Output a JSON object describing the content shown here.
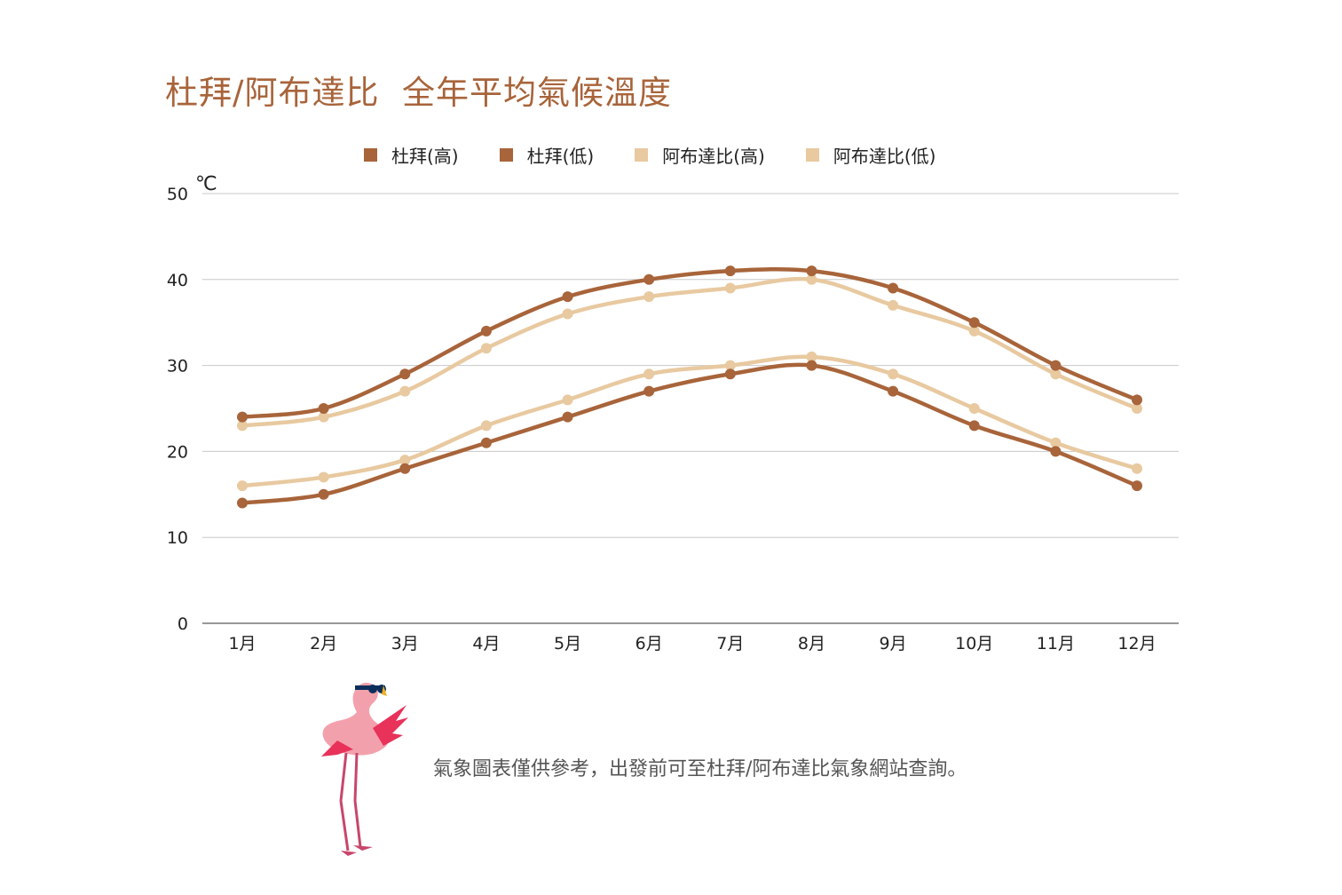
{
  "title": "杜拜/阿布達比  全年平均氣候溫度",
  "note": "氣象圖表僅供參考，出發前可至杜拜/阿布達比氣象網站查詢。",
  "colors": {
    "dubai": "#a8643a",
    "abudhabi": "#e8c9a0",
    "title": "#a8643a"
  },
  "chart_data": {
    "type": "line",
    "title": "杜拜/阿布達比  全年平均氣候溫度",
    "ylabel": "℃",
    "ylim": [
      0,
      50
    ],
    "yticks": [
      0,
      10,
      20,
      30,
      40,
      50
    ],
    "grid": true,
    "legend_position": "top",
    "categories": [
      "1月",
      "2月",
      "3月",
      "4月",
      "5月",
      "6月",
      "7月",
      "8月",
      "9月",
      "10月",
      "11月",
      "12月"
    ],
    "series": [
      {
        "name": "杜拜(高)",
        "color": "#a8643a",
        "values": [
          24,
          25,
          29,
          34,
          38,
          40,
          41,
          41,
          39,
          35,
          30,
          26
        ]
      },
      {
        "name": "杜拜(低)",
        "color": "#a8643a",
        "values": [
          14,
          15,
          18,
          21,
          24,
          27,
          29,
          30,
          27,
          23,
          20,
          16
        ]
      },
      {
        "name": "阿布達比(高)",
        "color": "#e8c9a0",
        "values": [
          23,
          24,
          27,
          32,
          36,
          38,
          39,
          40,
          37,
          34,
          29,
          25
        ]
      },
      {
        "name": "阿布達比(低)",
        "color": "#e8c9a0",
        "values": [
          16,
          17,
          19,
          23,
          26,
          29,
          30,
          31,
          29,
          25,
          21,
          18
        ]
      }
    ]
  }
}
